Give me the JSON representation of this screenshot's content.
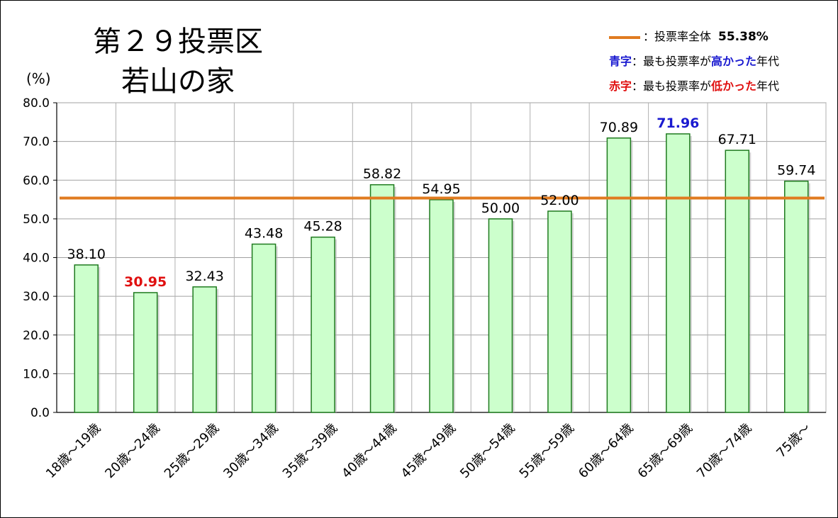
{
  "title_line1": "第２９投票区",
  "title_line2": "若山の家",
  "unit_label": "(%)",
  "legend": {
    "overall_label": "：投票率全体",
    "overall_value": "55.38%",
    "blue_key": "青字",
    "blue_text_prefix": "：最も投票率が",
    "blue_emph": "高かった",
    "blue_text_suffix": "年代",
    "red_key": "赤字",
    "red_text_prefix": "：最も投票率が",
    "red_emph": "低かった",
    "red_text_suffix": "年代"
  },
  "colors": {
    "bar_fill": "#ccffcc",
    "bar_stroke": "#1f7a1f",
    "overall_line": "#e07b20",
    "highest": "#1a1ad0",
    "lowest": "#e01010"
  },
  "chart_data": {
    "type": "bar",
    "categories": [
      "18歳～19歳",
      "20歳～24歳",
      "25歳～29歳",
      "30歳～34歳",
      "35歳～39歳",
      "40歳～44歳",
      "45歳～49歳",
      "50歳～54歳",
      "55歳～59歳",
      "60歳～64歳",
      "65歳～69歳",
      "70歳～74歳",
      "75歳～"
    ],
    "values": [
      38.1,
      30.95,
      32.43,
      43.48,
      45.28,
      58.82,
      54.95,
      50.0,
      52.0,
      70.89,
      71.96,
      67.71,
      59.74
    ],
    "value_labels": [
      "38.10",
      "30.95",
      "32.43",
      "43.48",
      "45.28",
      "58.82",
      "54.95",
      "50.00",
      "52.00",
      "70.89",
      "71.96",
      "67.71",
      "59.74"
    ],
    "highest_index": 10,
    "lowest_index": 1,
    "reference_line": 55.38,
    "ylim": [
      0,
      80
    ],
    "yticks": [
      0,
      10,
      20,
      30,
      40,
      50,
      60,
      70,
      80
    ],
    "ytick_labels": [
      "0.0",
      "10.0",
      "20.0",
      "30.0",
      "40.0",
      "50.0",
      "60.0",
      "70.0",
      "80.0"
    ],
    "grid": true,
    "legend_position": "top-right"
  }
}
